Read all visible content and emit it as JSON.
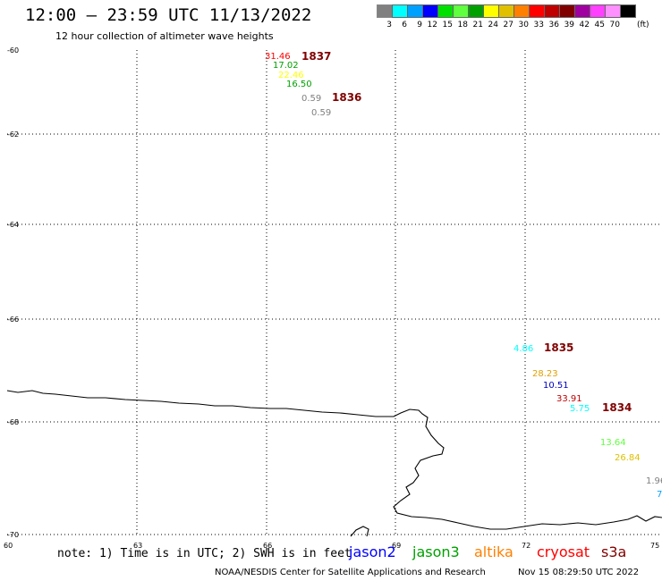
{
  "header": {
    "title": "12:00 – 23:59 UTC 11/13/2022",
    "subtitle": "12 hour collection of altimeter wave heights"
  },
  "legend": {
    "unit": "(ft)",
    "items": [
      {
        "label": "3",
        "color": "#808080"
      },
      {
        "label": "6",
        "color": "#00ffff"
      },
      {
        "label": "9",
        "color": "#00a0ff"
      },
      {
        "label": "12",
        "color": "#0000ff"
      },
      {
        "label": "15",
        "color": "#00e000"
      },
      {
        "label": "18",
        "color": "#60ff40"
      },
      {
        "label": "21",
        "color": "#00a000"
      },
      {
        "label": "24",
        "color": "#ffff00"
      },
      {
        "label": "27",
        "color": "#e0c000"
      },
      {
        "label": "30",
        "color": "#ff8000"
      },
      {
        "label": "33",
        "color": "#ff0000"
      },
      {
        "label": "36",
        "color": "#c00000"
      },
      {
        "label": "39",
        "color": "#800000"
      },
      {
        "label": "42",
        "color": "#a000a0"
      },
      {
        "label": "45",
        "color": "#ff40ff"
      },
      {
        "label": "70",
        "color": "#ff90ff"
      },
      {
        "label": "",
        "color": "#000000"
      }
    ]
  },
  "axes": {
    "lat_labels": [
      "-60",
      "-62",
      "-64",
      "-66",
      "-68",
      "-70"
    ],
    "lon_labels": [
      "60",
      "63",
      "66",
      "69",
      "72",
      "75"
    ]
  },
  "observations": [
    {
      "text": "31.46",
      "color": "#ff0000"
    },
    {
      "text": "17.02",
      "color": "#00a000"
    },
    {
      "text": "22.46",
      "color": "#ffff00"
    },
    {
      "text": "16.50",
      "color": "#00a000"
    },
    {
      "text": "0.59",
      "color": "#808080"
    },
    {
      "text": "0.59",
      "color": "#808080"
    },
    {
      "text": "4.86",
      "color": "#00ffff"
    },
    {
      "text": "28.23",
      "color": "#e0a000"
    },
    {
      "text": "10.51",
      "color": "#0000c0"
    },
    {
      "text": "33.91",
      "color": "#c00000"
    },
    {
      "text": "5.75",
      "color": "#00ffff"
    },
    {
      "text": "13.64",
      "color": "#60ff40"
    },
    {
      "text": "26.84",
      "color": "#e0c000"
    },
    {
      "text": "1.96",
      "color": "#808080"
    },
    {
      "text": "7",
      "color": "#00a0ff"
    }
  ],
  "time_labels": [
    "1837",
    "1836",
    "1835",
    "1834"
  ],
  "footer": {
    "note": "note: 1) Time is in UTC; 2) SWH is in feet",
    "satellites": [
      {
        "name": "jason2",
        "color": "#0000ff"
      },
      {
        "name": "jason3",
        "color": "#00a000"
      },
      {
        "name": "altika",
        "color": "#ff8000"
      },
      {
        "name": "cryosat",
        "color": "#ff0000"
      },
      {
        "name": "s3a",
        "color": "#800000"
      }
    ],
    "credit": "NOAA/NESDIS Center for Satellite Applications and Research",
    "timestamp": "Nov 15 08:29:50 UTC 2022"
  }
}
